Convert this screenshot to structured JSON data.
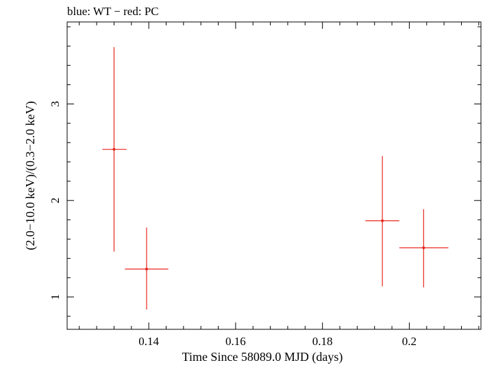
{
  "chart_data": {
    "type": "scatter",
    "title": "blue: WT − red: PC",
    "xlabel": "Time Since 58089.0 MJD (days)",
    "ylabel": "(2.0−10.0 keV)/(0.3−2.0 keV)",
    "xlim": [
      0.1212,
      0.2165
    ],
    "ylim": [
      0.665,
      3.85
    ],
    "x_ticks": [
      0.14,
      0.16,
      0.18,
      0.2
    ],
    "x_tick_labels": [
      "0.14",
      "0.16",
      "0.18",
      "0.2"
    ],
    "y_ticks": [
      1,
      2,
      3
    ],
    "y_tick_labels": [
      "1",
      "2",
      "3"
    ],
    "grid": false,
    "series": [
      {
        "color": "#e8261e",
        "points": [
          {
            "x": 0.132,
            "xerr_low": 0.0027,
            "xerr_high": 0.0029,
            "y": 2.53,
            "yerr_low": 1.06,
            "yerr_high": 1.06
          },
          {
            "x": 0.1395,
            "xerr_low": 0.005,
            "xerr_high": 0.005,
            "y": 1.29,
            "yerr_low": 0.42,
            "yerr_high": 0.43
          },
          {
            "x": 0.1938,
            "xerr_low": 0.0039,
            "xerr_high": 0.0039,
            "y": 1.79,
            "yerr_low": 0.68,
            "yerr_high": 0.67
          },
          {
            "x": 0.2033,
            "xerr_low": 0.0056,
            "xerr_high": 0.0057,
            "y": 1.51,
            "yerr_low": 0.41,
            "yerr_high": 0.4
          }
        ]
      }
    ]
  }
}
